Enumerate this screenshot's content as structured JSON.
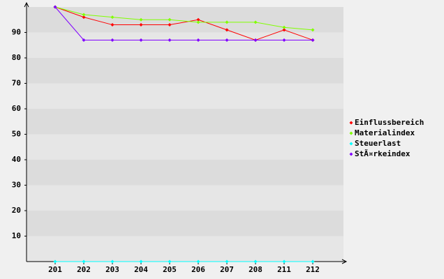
{
  "chart_data": {
    "type": "line",
    "categories": [
      "201",
      "202",
      "203",
      "204",
      "205",
      "206",
      "207",
      "208",
      "211",
      "212"
    ],
    "series": [
      {
        "name": "Einflussbereich",
        "color": "#ff0000",
        "values": [
          100,
          96,
          93,
          93,
          93,
          95,
          91,
          87,
          91,
          87
        ]
      },
      {
        "name": "Materialindex",
        "color": "#80ff00",
        "values": [
          100,
          97,
          96,
          95,
          95,
          94,
          94,
          94,
          92,
          91
        ]
      },
      {
        "name": "Steuerlast",
        "color": "#00ffff",
        "values": [
          0,
          0,
          0,
          0,
          0,
          0,
          0,
          0,
          0,
          0
        ]
      },
      {
        "name": "StÃ¤rkeindex",
        "color": "#8000ff",
        "values": [
          100,
          87,
          87,
          87,
          87,
          87,
          87,
          87,
          87,
          87
        ]
      }
    ],
    "ylim": [
      0,
      100
    ],
    "yticks": [
      10,
      20,
      30,
      40,
      50,
      60,
      70,
      80,
      90
    ],
    "grid": true,
    "legend": "right"
  }
}
